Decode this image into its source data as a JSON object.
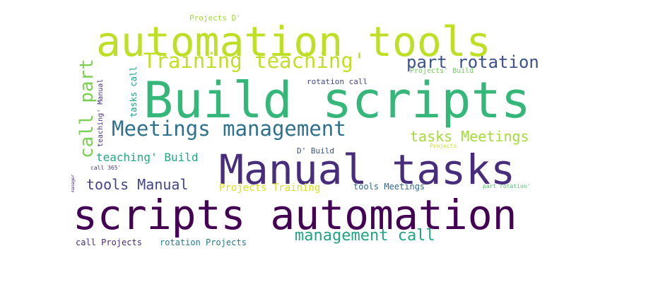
{
  "palette": {
    "dark_purple": "#440154",
    "indigo": "#3b528b",
    "teal": "#21918c",
    "green": "#5ec962",
    "yellow_green": "#bddf26",
    "slate": "#414487",
    "sea_green": "#35b779"
  },
  "words": [
    {
      "text": "automation tools",
      "color": "#bddf26"
    },
    {
      "text": "Build scripts",
      "color": "#35b779"
    },
    {
      "text": "Manual tasks",
      "color": "#472d7b"
    },
    {
      "text": "scripts automation",
      "color": "#440154"
    },
    {
      "text": "Meetings management",
      "color": "#2c728e"
    },
    {
      "text": "Training teaching'",
      "color": "#c2df23"
    },
    {
      "text": "part rotation",
      "color": "#3b528b"
    },
    {
      "text": "call part",
      "color": "#7ad151"
    },
    {
      "text": "management call",
      "color": "#20a486"
    },
    {
      "text": "tasks Meetings",
      "color": "#a5db36"
    },
    {
      "text": "teaching' Build",
      "color": "#22a884"
    },
    {
      "text": "tools Manual",
      "color": "#414487"
    },
    {
      "text": "Projects Training",
      "color": "#d8e219"
    },
    {
      "text": "tools Meetings",
      "color": "#31688e"
    },
    {
      "text": "call Projects",
      "color": "#482878"
    },
    {
      "text": "rotation Projects",
      "color": "#2a788e"
    },
    {
      "text": "rotation call",
      "color": "#3e4a89"
    },
    {
      "text": "Projects D'",
      "color": "#9fda3a"
    },
    {
      "text": "Projects' Build",
      "color": "#6ece58"
    },
    {
      "text": "D' Build",
      "color": "#3b528b"
    },
    {
      "text": "part rotation'",
      "color": "#4ac16d"
    },
    {
      "text": "call 365'",
      "color": "#443983"
    },
    {
      "text": "Projects",
      "color": "#c8e020"
    },
    {
      "text": "tasks call",
      "color": "#1f9e89"
    },
    {
      "text": "teaching' Manual",
      "color": "#46327e"
    },
    {
      "text": "manager",
      "color": "#482475"
    }
  ]
}
